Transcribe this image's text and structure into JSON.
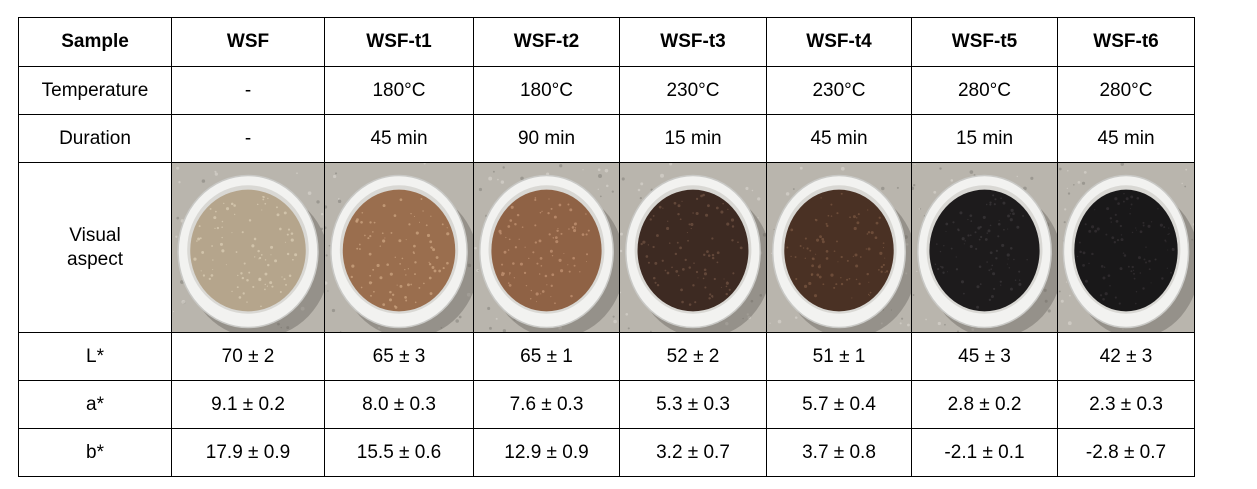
{
  "header": [
    "Sample",
    "WSF",
    "WSF-t1",
    "WSF-t2",
    "WSF-t3",
    "WSF-t4",
    "WSF-t5",
    "WSF-t6"
  ],
  "rows": [
    {
      "label": "Temperature",
      "values": [
        "-",
        "180°C",
        "180°C",
        "230°C",
        "230°C",
        "280°C",
        "280°C"
      ]
    },
    {
      "label": "Duration",
      "values": [
        "-",
        "45 min",
        "90 min",
        "15 min",
        "45 min",
        "15 min",
        "45 min"
      ]
    }
  ],
  "visual": {
    "label_line1": "Visual",
    "label_line2": "aspect",
    "samples": [
      {
        "fill": "#b5a58c",
        "speck": "#d8cbb2"
      },
      {
        "fill": "#9a6e4e",
        "speck": "#c9a17e"
      },
      {
        "fill": "#8f6245",
        "speck": "#bf9170"
      },
      {
        "fill": "#3d2a22",
        "speck": "#6b4f40"
      },
      {
        "fill": "#4a3124",
        "speck": "#75543f"
      },
      {
        "fill": "#1d1b1c",
        "speck": "#3a3638"
      },
      {
        "fill": "#191819",
        "speck": "#333032"
      }
    ]
  },
  "metrics": [
    {
      "label": "L*",
      "values": [
        "70 ± 2",
        "65 ± 3",
        "65 ± 1",
        "52 ± 2",
        "51 ± 1",
        "45 ± 3",
        "42 ± 3"
      ]
    },
    {
      "label": "a*",
      "values": [
        "9.1 ± 0.2",
        "8.0 ± 0.3",
        "7.6 ± 0.3",
        "5.3 ± 0.3",
        "5.7 ± 0.4",
        "2.8 ± 0.2",
        "2.3 ± 0.3"
      ]
    },
    {
      "label": "b*",
      "values": [
        "17.9 ± 0.9",
        "15.5 ± 0.6",
        "12.9 ± 0.9",
        "3.2 ± 0.7",
        "3.7 ± 0.8",
        "-2.1 ± 0.1",
        "-2.8 ± 0.7"
      ]
    }
  ]
}
